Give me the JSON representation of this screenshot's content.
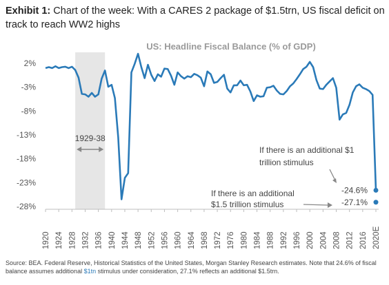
{
  "header": {
    "exhibit_label": "Exhibit 1:",
    "title": "Chart of the week: With a CARES 2 package of $1.5trn, US fiscal deficit on track to reach WW2 highs"
  },
  "footer": {
    "source_pre": "Source: BEA. Federal Reserve, Historical Statistics of the United States, Morgan Stanley Research estimates. Note that 24.6% of fiscal balance assumes additional ",
    "source_highlight": "$1tn",
    "source_post": " stimulus under consideration, 27.1% reflects an additional $1.5trn."
  },
  "chart_data": {
    "type": "line",
    "title": "US: Headline Fiscal Balance (% of GDP)",
    "ylim": [
      -28,
      2
    ],
    "yticks": [
      "2%",
      "-3%",
      "-8%",
      "-13%",
      "-18%",
      "-23%",
      "-28%"
    ],
    "ytick_values": [
      2,
      -3,
      -8,
      -13,
      -18,
      -23,
      -28
    ],
    "xlim": [
      1920,
      2020
    ],
    "xticks": [
      "1920",
      "1924",
      "1928",
      "1932",
      "1936",
      "1940",
      "1944",
      "1948",
      "1952",
      "1956",
      "1960",
      "1964",
      "1968",
      "1972",
      "1976",
      "1980",
      "1984",
      "1988",
      "1992",
      "1996",
      "2000",
      "2004",
      "2008",
      "2012",
      "2016",
      "2020E"
    ],
    "xtick_values": [
      1920,
      1924,
      1928,
      1932,
      1936,
      1940,
      1944,
      1948,
      1952,
      1956,
      1960,
      1964,
      1968,
      1972,
      1976,
      1980,
      1984,
      1988,
      1992,
      1996,
      2000,
      2004,
      2008,
      2012,
      2016,
      2020
    ],
    "grid": false,
    "shaded_period": {
      "label": "1929-38",
      "start": 1929,
      "end": 1938
    },
    "series": [
      {
        "color": "#2a7ab8",
        "x": [
          1920,
          1921,
          1922,
          1923,
          1924,
          1925,
          1926,
          1927,
          1928,
          1929,
          1930,
          1931,
          1932,
          1933,
          1934,
          1935,
          1936,
          1937,
          1938,
          1939,
          1940,
          1941,
          1942,
          1943,
          1944,
          1945,
          1946,
          1947,
          1948,
          1949,
          1950,
          1951,
          1952,
          1953,
          1954,
          1955,
          1956,
          1957,
          1958,
          1959,
          1960,
          1961,
          1962,
          1963,
          1964,
          1965,
          1966,
          1967,
          1968,
          1969,
          1970,
          1971,
          1972,
          1973,
          1974,
          1975,
          1976,
          1977,
          1978,
          1979,
          1980,
          1981,
          1982,
          1983,
          1984,
          1985,
          1986,
          1987,
          1988,
          1989,
          1990,
          1991,
          1992,
          1993,
          1994,
          1995,
          1996,
          1997,
          1998,
          1999,
          2000,
          2001,
          2002,
          2003,
          2004,
          2005,
          2006,
          2007,
          2008,
          2009,
          2010,
          2011,
          2012,
          2013,
          2014,
          2015,
          2016,
          2017,
          2018,
          2019,
          2020
        ],
        "y": [
          1.0,
          1.2,
          1.0,
          1.4,
          1.0,
          1.2,
          1.3,
          1.0,
          1.3,
          0.6,
          -1.0,
          -4.4,
          -4.5,
          -5.0,
          -4.2,
          -5.0,
          -4.5,
          -1.2,
          0.5,
          -2.9,
          -2.5,
          -5.3,
          -13.5,
          -26.5,
          -22.0,
          -21.0,
          0.1,
          1.9,
          4.0,
          1.2,
          -1.1,
          1.7,
          -0.4,
          -1.7,
          -0.3,
          -0.8,
          0.9,
          0.8,
          -0.6,
          -2.5,
          0.1,
          -0.7,
          -1.2,
          -0.7,
          -0.9,
          -0.2,
          -0.5,
          -1.0,
          -2.8,
          0.3,
          -0.3,
          -2.1,
          -1.9,
          -1.1,
          -0.4,
          -3.3,
          -4.1,
          -2.6,
          -2.6,
          -1.6,
          -2.6,
          -2.5,
          -3.9,
          -5.9,
          -4.7,
          -5.0,
          -4.9,
          -3.1,
          -3.0,
          -2.7,
          -3.7,
          -4.4,
          -4.5,
          -3.8,
          -2.8,
          -2.2,
          -1.3,
          -0.3,
          0.8,
          1.3,
          2.3,
          1.2,
          -1.5,
          -3.3,
          -3.4,
          -2.5,
          -1.8,
          -1.1,
          -3.1,
          -9.8,
          -8.7,
          -8.4,
          -6.7,
          -4.1,
          -2.8,
          -2.4,
          -3.1,
          -3.4,
          -3.8,
          -4.6,
          -24.6
        ]
      }
    ],
    "scenario_points": [
      {
        "x": 2020,
        "y": -24.6,
        "label": "-24.6%"
      },
      {
        "x": 2020,
        "y": -27.1,
        "label": "-27.1%"
      }
    ],
    "annotations": [
      {
        "lines": [
          "If there is an additional $1",
          "trillion stimulus"
        ]
      },
      {
        "lines": [
          "If there is an additional",
          "$1.5 trillion stimulus"
        ]
      }
    ]
  }
}
